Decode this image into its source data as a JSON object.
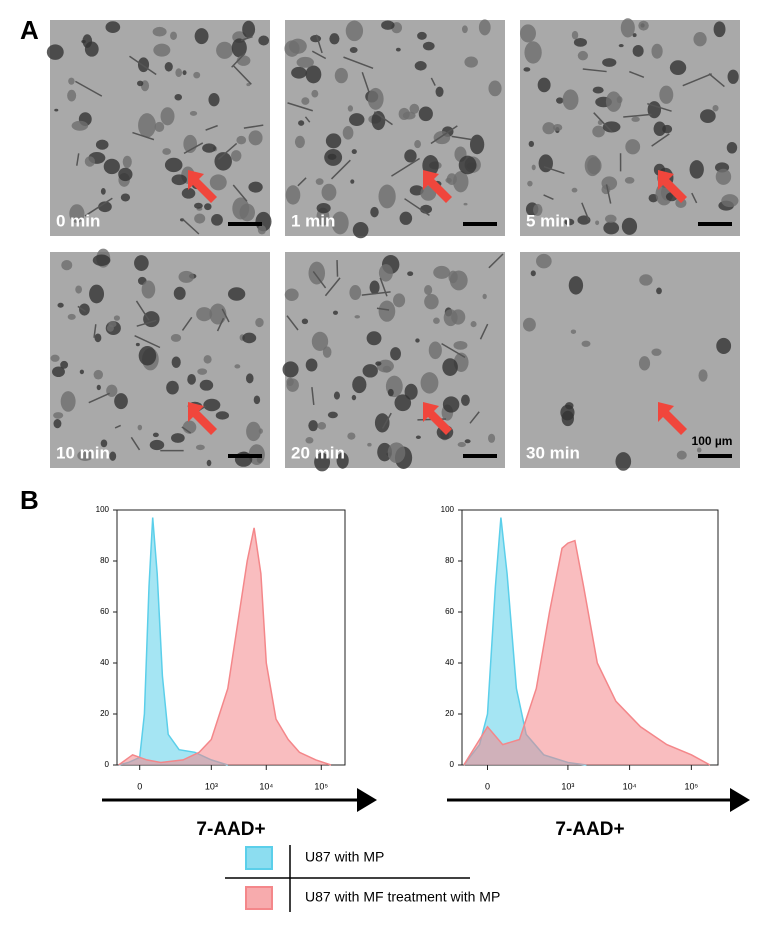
{
  "panel_a": {
    "label": "A",
    "frames": [
      "0 min",
      "1 min",
      "5 min",
      "10 min",
      "20 min",
      "30 min"
    ],
    "scale_bar": "100 µm"
  },
  "panel_b_label": "B",
  "legend": [
    {
      "name": "U87 with MP",
      "color": "#5bcfea"
    },
    {
      "name": "U87 with MF treatment with MP",
      "color": "#f4878a"
    }
  ],
  "chart_data": [
    {
      "type": "area",
      "xscale": "biexponential",
      "xlabel": "7-AAD+",
      "xlim": [
        -110,
        270000
      ],
      "ylim": [
        0,
        100
      ],
      "yticks": [
        0,
        20,
        40,
        60,
        80,
        100
      ],
      "xticks": [
        0,
        {
          "value": 1000,
          "label": "10³"
        },
        {
          "value": 10000,
          "label": "10⁴"
        },
        {
          "value": 100000,
          "label": "10⁵"
        }
      ],
      "series": [
        {
          "color": "#5bcfea",
          "x": [
            -100,
            -50,
            0,
            20,
            40,
            57,
            80,
            110,
            150,
            250,
            500,
            1000,
            2000
          ],
          "values": [
            0,
            1,
            3,
            20,
            70,
            97,
            75,
            35,
            12,
            6,
            5,
            2,
            0
          ]
        },
        {
          "color": "#f4878a",
          "x": [
            -100,
            -30,
            30,
            100,
            300,
            600,
            1000,
            2000,
            3000,
            4500,
            6000,
            8000,
            10000,
            15000,
            25000,
            40000,
            80000,
            150000
          ],
          "values": [
            0,
            4,
            2,
            1,
            2,
            5,
            10,
            30,
            55,
            80,
            93,
            75,
            40,
            18,
            10,
            5,
            2,
            0
          ]
        }
      ]
    },
    {
      "type": "area",
      "xscale": "biexponential",
      "xlabel": "7-AAD+",
      "xlim": [
        -110,
        270000
      ],
      "ylim": [
        0,
        100
      ],
      "yticks": [
        0,
        20,
        40,
        60,
        80,
        100
      ],
      "xticks": [
        0,
        {
          "value": 1000,
          "label": "10³"
        },
        {
          "value": 10000,
          "label": "10⁴"
        },
        {
          "value": 100000,
          "label": "10⁵"
        }
      ],
      "series": [
        {
          "color": "#5bcfea",
          "x": [
            -100,
            -30,
            0,
            30,
            52,
            80,
            130,
            200,
            400,
            1000,
            2000
          ],
          "values": [
            0,
            8,
            20,
            70,
            97,
            75,
            30,
            12,
            4,
            1,
            0
          ]
        },
        {
          "color": "#f4878a",
          "x": [
            -100,
            -30,
            0,
            60,
            150,
            300,
            500,
            800,
            1000,
            1300,
            1800,
            3000,
            6000,
            15000,
            40000,
            100000,
            200000
          ],
          "values": [
            0,
            10,
            15,
            8,
            10,
            30,
            60,
            85,
            87,
            88,
            70,
            40,
            25,
            15,
            8,
            4,
            0
          ]
        }
      ]
    }
  ]
}
